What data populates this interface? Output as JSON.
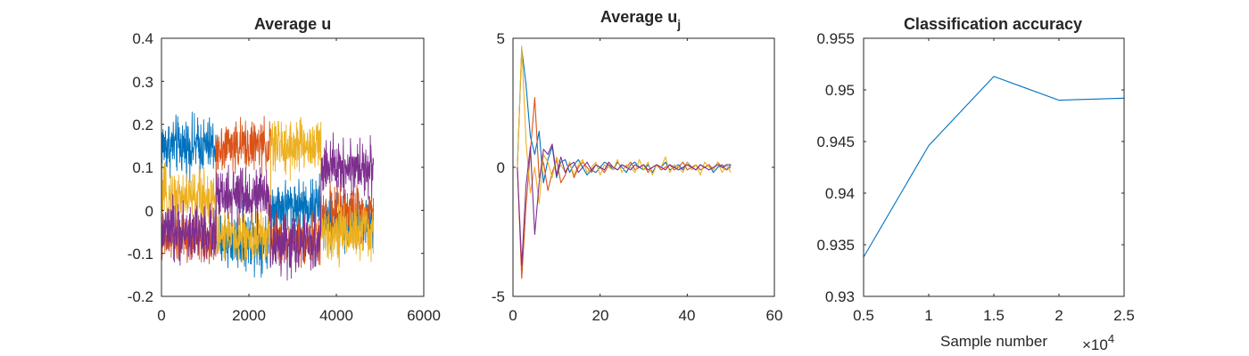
{
  "chart_data": [
    {
      "type": "line",
      "title": "Average u",
      "xlabel": "",
      "ylabel": "",
      "xlim": [
        0,
        6000
      ],
      "ylim": [
        -0.2,
        0.4
      ],
      "xticks": [
        "0",
        "2000",
        "4000",
        "6000"
      ],
      "yticks": [
        "-0.2",
        "-0.1",
        "0",
        "0.1",
        "0.2",
        "0.3",
        "0.4"
      ],
      "grid": false,
      "colors": [
        "#0072BD",
        "#D95319",
        "#EDB120",
        "#7E2F8E"
      ],
      "series": [
        {
          "x": [
            0,
            1250,
            1250,
            2500,
            2500,
            3650,
            3650,
            4850
          ],
          "values": [
            0.15,
            0.15,
            -0.07,
            -0.07,
            0.01,
            0.01,
            -0.03,
            -0.03
          ],
          "noise": 0.04
        },
        {
          "x": [
            0,
            1250,
            1250,
            2500,
            2500,
            3650,
            3650,
            4850
          ],
          "values": [
            -0.07,
            -0.07,
            0.15,
            0.15,
            -0.07,
            -0.07,
            0.0,
            0.0
          ],
          "noise": 0.035
        },
        {
          "x": [
            0,
            1250,
            1250,
            2500,
            2500,
            3650,
            3650,
            4850
          ],
          "values": [
            0.03,
            0.03,
            -0.06,
            -0.06,
            0.15,
            0.15,
            -0.05,
            -0.05
          ],
          "noise": 0.04
        },
        {
          "x": [
            0,
            1250,
            1250,
            2500,
            2500,
            3650,
            3650,
            4850
          ],
          "values": [
            -0.05,
            -0.05,
            0.03,
            0.03,
            -0.08,
            -0.08,
            0.1,
            0.1
          ],
          "noise": 0.04
        }
      ]
    },
    {
      "type": "line",
      "title": "Average u",
      "title_subscript": "j",
      "xlabel": "",
      "ylabel": "",
      "xlim": [
        0,
        60
      ],
      "ylim": [
        -5,
        5
      ],
      "xticks": [
        "0",
        "20",
        "40",
        "60"
      ],
      "yticks": [
        "-5",
        "0",
        "5"
      ],
      "grid": false,
      "colors": [
        "#0072BD",
        "#D95319",
        "#EDB120",
        "#7E2F8E"
      ],
      "series": [
        {
          "x": [
            1,
            2,
            3,
            4,
            5,
            6,
            7,
            8,
            9,
            10,
            11,
            12,
            13,
            14,
            15,
            16,
            17,
            18,
            19,
            20,
            21,
            22,
            23,
            24,
            25,
            26,
            27,
            28,
            29,
            30,
            31,
            32,
            33,
            34,
            35,
            36,
            37,
            38,
            39,
            40,
            41,
            42,
            43,
            44,
            45,
            46,
            47,
            48,
            49,
            50
          ],
          "values": [
            0,
            4.6,
            3.2,
            1.2,
            0.5,
            1.4,
            -0.6,
            0.3,
            0.8,
            -0.4,
            0.2,
            0.3,
            -0.2,
            0.1,
            0.3,
            0.0,
            -0.3,
            -0.1,
            -0.2,
            0.0,
            0.2,
            0.1,
            -0.1,
            0.2,
            0.0,
            -0.2,
            0.1,
            0.2,
            0.0,
            -0.1,
            0.1,
            -0.2,
            0.1,
            0.0,
            0.2,
            -0.1,
            0.0,
            0.1,
            -0.1,
            0.2,
            0.0,
            -0.1,
            0.1,
            0.0,
            0.1,
            -0.2,
            0.0,
            0.1,
            -0.1,
            0.1
          ]
        },
        {
          "x": [
            1,
            2,
            3,
            4,
            5,
            6,
            7,
            8,
            9,
            10,
            11,
            12,
            13,
            14,
            15,
            16,
            17,
            18,
            19,
            20,
            21,
            22,
            23,
            24,
            25,
            26,
            27,
            28,
            29,
            30,
            31,
            32,
            33,
            34,
            35,
            36,
            37,
            38,
            39,
            40,
            41,
            42,
            43,
            44,
            45,
            46,
            47,
            48,
            49,
            50
          ],
          "values": [
            0,
            -4.3,
            -1.5,
            0.6,
            2.7,
            -0.4,
            0.2,
            -0.9,
            -0.2,
            0.3,
            -0.6,
            -0.3,
            0.2,
            -0.4,
            0.0,
            0.2,
            0.0,
            -0.2,
            0.1,
            0.0,
            -0.2,
            0.1,
            0.0,
            -0.1,
            0.1,
            0.0,
            0.2,
            -0.1,
            0.0,
            0.1,
            -0.2,
            0.0,
            0.1,
            -0.1,
            0.0,
            0.1,
            -0.1,
            0.0,
            0.2,
            -0.1,
            0.0,
            0.1,
            -0.1,
            0.0,
            0.1,
            -0.1,
            0.2,
            0.0,
            -0.1,
            0.0
          ]
        },
        {
          "x": [
            1,
            2,
            3,
            4,
            5,
            6,
            7,
            8,
            9,
            10,
            11,
            12,
            13,
            14,
            15,
            16,
            17,
            18,
            19,
            20,
            21,
            22,
            23,
            24,
            25,
            26,
            27,
            28,
            29,
            30,
            31,
            32,
            33,
            34,
            35,
            36,
            37,
            38,
            39,
            40,
            41,
            42,
            43,
            44,
            45,
            46,
            47,
            48,
            49,
            50
          ],
          "values": [
            0,
            4.7,
            1.0,
            -1.0,
            0.0,
            -1.4,
            0.5,
            0.2,
            -0.4,
            0.4,
            0.1,
            -0.2,
            0.2,
            -0.3,
            0.1,
            0.3,
            -0.2,
            0.0,
            0.2,
            -0.3,
            0.1,
            0.0,
            -0.1,
            0.3,
            -0.2,
            0.1,
            0.0,
            -0.2,
            0.3,
            -0.1,
            0.2,
            -0.3,
            0.1,
            0.0,
            0.4,
            -0.2,
            0.1,
            0.0,
            -0.2,
            0.2,
            -0.1,
            0.1,
            -0.3,
            0.2,
            0.0,
            -0.1,
            0.2,
            -0.2,
            0.1,
            -0.2
          ]
        },
        {
          "x": [
            1,
            2,
            3,
            4,
            5,
            6,
            7,
            8,
            9,
            10,
            11,
            12,
            13,
            14,
            15,
            16,
            17,
            18,
            19,
            20,
            21,
            22,
            23,
            24,
            25,
            26,
            27,
            28,
            29,
            30,
            31,
            32,
            33,
            34,
            35,
            36,
            37,
            38,
            39,
            40,
            41,
            42,
            43,
            44,
            45,
            46,
            47,
            48,
            49,
            50
          ],
          "values": [
            0,
            -3.8,
            -0.7,
            0.8,
            -2.6,
            -0.6,
            0.7,
            0.5,
            0.9,
            -0.3,
            0.4,
            -0.2,
            0.1,
            0.2,
            -0.2,
            0.0,
            0.2,
            -0.1,
            0.1,
            0.0,
            -0.1,
            0.2,
            0.0,
            -0.1,
            0.1,
            0.0,
            -0.1,
            0.1,
            0.0,
            0.1,
            -0.1,
            0.0,
            0.1,
            0.0,
            -0.1,
            0.1,
            0.0,
            -0.1,
            0.0,
            0.1,
            0.0,
            -0.1,
            0.1,
            0.0,
            -0.1,
            0.0,
            0.1,
            0.0,
            0.1,
            0.1
          ]
        }
      ]
    },
    {
      "type": "line",
      "title": "Classification accuracy",
      "xlabel": "Sample number",
      "ylabel": "",
      "x_exponent_label": "×10",
      "x_exponent": "4",
      "xlim": [
        0.5,
        2.5
      ],
      "ylim": [
        0.93,
        0.955
      ],
      "xticks": [
        "0.5",
        "1",
        "1.5",
        "2",
        "2.5"
      ],
      "yticks": [
        "0.93",
        "0.935",
        "0.94",
        "0.945",
        "0.95",
        "0.955"
      ],
      "grid": false,
      "colors": [
        "#0072BD"
      ],
      "series": [
        {
          "x": [
            0.5,
            1.0,
            1.5,
            2.0,
            2.5
          ],
          "values": [
            0.9338,
            0.9446,
            0.9513,
            0.949,
            0.9492
          ]
        }
      ]
    }
  ]
}
